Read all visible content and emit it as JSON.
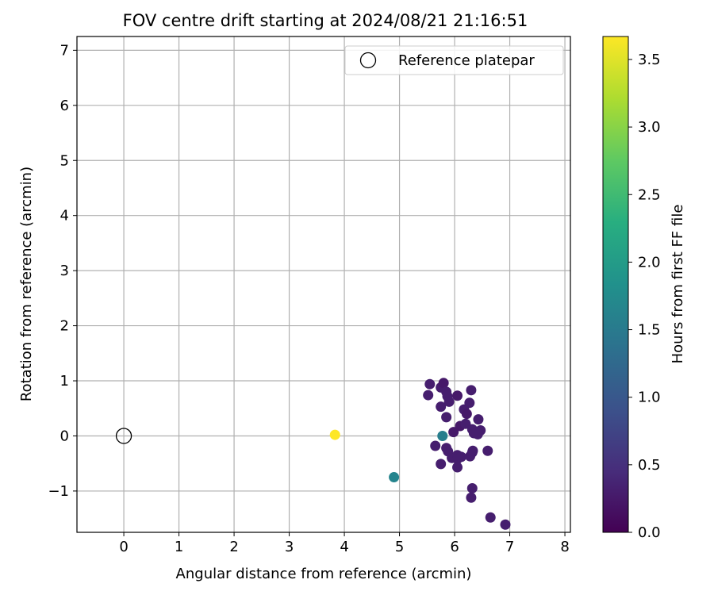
{
  "chart_data": {
    "type": "scatter",
    "title": "FOV centre drift starting at 2024/08/21 21:16:51",
    "xlabel": "Angular distance from reference (arcmin)",
    "ylabel": "Rotation from reference (arcmin)",
    "xlim": [
      -0.85,
      8.1
    ],
    "ylim": [
      -1.75,
      7.25
    ],
    "x_ticks": [
      0,
      1,
      2,
      3,
      4,
      5,
      6,
      7,
      8
    ],
    "y_ticks": [
      -1,
      0,
      1,
      2,
      3,
      4,
      5,
      6,
      7
    ],
    "x_tick_labels": [
      "0",
      "1",
      "2",
      "3",
      "4",
      "5",
      "6",
      "7",
      "8"
    ],
    "y_tick_labels": [
      "−1",
      "0",
      "1",
      "2",
      "3",
      "4",
      "5",
      "6",
      "7"
    ],
    "grid": true,
    "legend": {
      "placement": "top-right",
      "entries": [
        "Reference platepar"
      ]
    },
    "reference_point": {
      "x": 0,
      "y": 0,
      "label": "Reference platepar"
    },
    "colorbar": {
      "label": "Hours from first FF file",
      "colormap": "viridis",
      "range": [
        0,
        3.67
      ],
      "ticks": [
        0.0,
        0.5,
        1.0,
        1.5,
        2.0,
        2.5,
        3.0,
        3.5
      ],
      "tick_labels": [
        "0.0",
        "0.5",
        "1.0",
        "1.5",
        "2.0",
        "2.5",
        "3.0",
        "3.5"
      ]
    },
    "points": [
      {
        "x": 5.55,
        "y": 0.94,
        "c": 0.3
      },
      {
        "x": 5.52,
        "y": 0.74,
        "c": 0.3
      },
      {
        "x": 5.75,
        "y": 0.88,
        "c": 0.3
      },
      {
        "x": 5.8,
        "y": 0.96,
        "c": 0.25
      },
      {
        "x": 5.87,
        "y": 0.72,
        "c": 0.3
      },
      {
        "x": 5.9,
        "y": 0.62,
        "c": 0.3
      },
      {
        "x": 5.85,
        "y": 0.8,
        "c": 0.3
      },
      {
        "x": 6.05,
        "y": 0.73,
        "c": 0.25
      },
      {
        "x": 6.3,
        "y": 0.83,
        "c": 0.3
      },
      {
        "x": 6.27,
        "y": 0.6,
        "c": 0.3
      },
      {
        "x": 5.75,
        "y": 0.53,
        "c": 0.3
      },
      {
        "x": 5.85,
        "y": 0.34,
        "c": 0.3
      },
      {
        "x": 6.17,
        "y": 0.48,
        "c": 0.3
      },
      {
        "x": 6.22,
        "y": 0.4,
        "c": 0.25
      },
      {
        "x": 6.43,
        "y": 0.3,
        "c": 0.3
      },
      {
        "x": 6.1,
        "y": 0.18,
        "c": 0.25
      },
      {
        "x": 6.2,
        "y": 0.22,
        "c": 0.3
      },
      {
        "x": 6.32,
        "y": 0.12,
        "c": 0.3
      },
      {
        "x": 5.98,
        "y": 0.07,
        "c": 0.25
      },
      {
        "x": 6.35,
        "y": 0.05,
        "c": 0.3
      },
      {
        "x": 6.47,
        "y": 0.1,
        "c": 0.3
      },
      {
        "x": 6.42,
        "y": 0.03,
        "c": 0.3
      },
      {
        "x": 5.78,
        "y": 0.0,
        "c": 1.55
      },
      {
        "x": 5.65,
        "y": -0.18,
        "c": 0.3
      },
      {
        "x": 5.85,
        "y": -0.22,
        "c": 0.3
      },
      {
        "x": 5.88,
        "y": -0.28,
        "c": 0.3
      },
      {
        "x": 5.95,
        "y": -0.4,
        "c": 0.3
      },
      {
        "x": 6.05,
        "y": -0.35,
        "c": 0.3
      },
      {
        "x": 6.05,
        "y": -0.42,
        "c": 0.3
      },
      {
        "x": 6.12,
        "y": -0.38,
        "c": 0.3
      },
      {
        "x": 6.28,
        "y": -0.37,
        "c": 0.3
      },
      {
        "x": 6.32,
        "y": -0.3,
        "c": 0.3
      },
      {
        "x": 6.33,
        "y": -0.27,
        "c": 0.3
      },
      {
        "x": 6.6,
        "y": -0.27,
        "c": 0.3
      },
      {
        "x": 5.75,
        "y": -0.51,
        "c": 0.3
      },
      {
        "x": 6.05,
        "y": -0.57,
        "c": 0.3
      },
      {
        "x": 6.32,
        "y": -0.95,
        "c": 0.3
      },
      {
        "x": 6.3,
        "y": -1.12,
        "c": 0.3
      },
      {
        "x": 6.65,
        "y": -1.48,
        "c": 0.3
      },
      {
        "x": 6.92,
        "y": -1.61,
        "c": 0.3
      },
      {
        "x": 4.9,
        "y": -0.75,
        "c": 1.65
      },
      {
        "x": 3.83,
        "y": 0.02,
        "c": 3.67
      }
    ]
  }
}
